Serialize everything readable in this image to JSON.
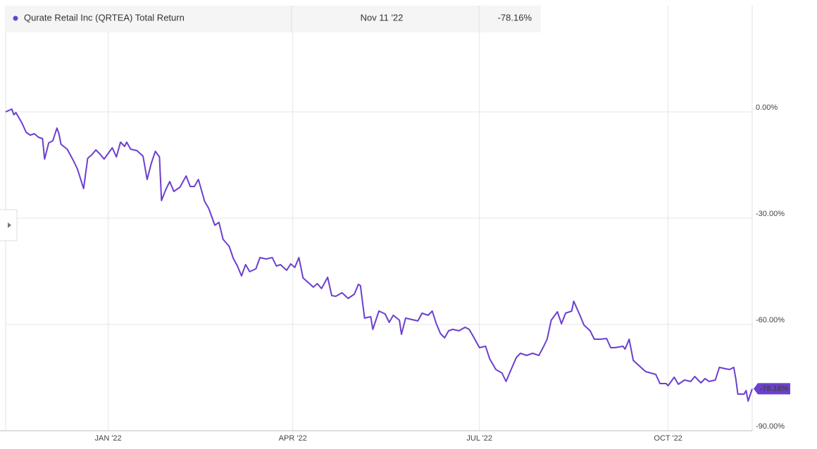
{
  "chart_data": {
    "type": "line",
    "header": {
      "date": "Nov 11 '22",
      "value": "-78.16%"
    },
    "x": [
      "2021-11-12",
      "2021-11-15",
      "2021-11-16",
      "2021-11-17",
      "2021-11-20",
      "2021-11-22",
      "2021-11-24",
      "2021-11-26",
      "2021-11-28",
      "2021-11-30",
      "2021-12-01",
      "2021-12-03",
      "2021-12-05",
      "2021-12-07",
      "2021-12-08",
      "2021-12-09",
      "2021-12-12",
      "2021-12-15",
      "2021-12-17",
      "2021-12-20",
      "2021-12-22",
      "2021-12-24",
      "2021-12-26",
      "2021-12-28",
      "2021-12-30",
      "2022-01-01",
      "2022-01-03",
      "2022-01-05",
      "2022-01-07",
      "2022-01-09",
      "2022-01-10",
      "2022-01-12",
      "2022-01-15",
      "2022-01-18",
      "2022-01-20",
      "2022-01-22",
      "2022-01-24",
      "2022-01-26",
      "2022-01-27",
      "2022-01-29",
      "2022-01-31",
      "2022-02-02",
      "2022-02-05",
      "2022-02-08",
      "2022-02-10",
      "2022-02-12",
      "2022-02-14",
      "2022-02-17",
      "2022-02-19",
      "2022-02-22",
      "2022-02-24",
      "2022-02-26",
      "2022-03-01",
      "2022-03-03",
      "2022-03-05",
      "2022-03-07",
      "2022-03-09",
      "2022-03-11",
      "2022-03-14",
      "2022-03-16",
      "2022-03-19",
      "2022-03-22",
      "2022-03-24",
      "2022-03-26",
      "2022-03-29",
      "2022-03-31",
      "2022-04-02",
      "2022-04-04",
      "2022-04-06",
      "2022-04-08",
      "2022-04-11",
      "2022-04-13",
      "2022-04-15",
      "2022-04-18",
      "2022-04-20",
      "2022-04-22",
      "2022-04-25",
      "2022-04-28",
      "2022-05-01",
      "2022-05-03",
      "2022-05-04",
      "2022-05-06",
      "2022-05-09",
      "2022-05-10",
      "2022-05-13",
      "2022-05-16",
      "2022-05-18",
      "2022-05-20",
      "2022-05-23",
      "2022-05-24",
      "2022-05-26",
      "2022-05-29",
      "2022-06-01",
      "2022-06-03",
      "2022-06-06",
      "2022-06-08",
      "2022-06-10",
      "2022-06-12",
      "2022-06-14",
      "2022-06-16",
      "2022-06-18",
      "2022-06-21",
      "2022-06-24",
      "2022-06-26",
      "2022-06-28",
      "2022-07-01",
      "2022-07-04",
      "2022-07-06",
      "2022-07-09",
      "2022-07-12",
      "2022-07-14",
      "2022-07-16",
      "2022-07-19",
      "2022-07-21",
      "2022-07-24",
      "2022-07-27",
      "2022-07-30",
      "2022-08-01",
      "2022-08-03",
      "2022-08-05",
      "2022-08-08",
      "2022-08-10",
      "2022-08-12",
      "2022-08-15",
      "2022-08-16",
      "2022-08-19",
      "2022-08-21",
      "2022-08-24",
      "2022-08-26",
      "2022-08-29",
      "2022-09-01",
      "2022-09-03",
      "2022-09-05",
      "2022-09-09",
      "2022-09-10",
      "2022-09-12",
      "2022-09-14",
      "2022-09-17",
      "2022-09-20",
      "2022-09-25",
      "2022-09-27",
      "2022-09-30",
      "2022-10-01",
      "2022-10-04",
      "2022-10-06",
      "2022-10-09",
      "2022-10-12",
      "2022-10-14",
      "2022-10-17",
      "2022-10-19",
      "2022-10-21",
      "2022-10-24",
      "2022-10-26",
      "2022-10-29",
      "2022-10-31",
      "2022-11-02",
      "2022-11-03",
      "2022-11-04",
      "2022-11-07",
      "2022-11-08",
      "2022-11-09",
      "2022-11-11"
    ],
    "series": [
      {
        "name": "Qurate Retail Inc (QRTEA) Total Return",
        "color": "#6c3fcf",
        "values": [
          0,
          0.79,
          -0.79,
          -0.2,
          -3.18,
          -5.76,
          -6.56,
          -6.16,
          -7.15,
          -7.55,
          -13.31,
          -8.74,
          -8.15,
          -4.57,
          -6.16,
          -9.14,
          -10.53,
          -13.71,
          -16.09,
          -21.66,
          -13.11,
          -12.12,
          -10.73,
          -11.92,
          -13.31,
          -11.72,
          -10.13,
          -12.72,
          -8.54,
          -9.74,
          -8.54,
          -10.53,
          -10.93,
          -12.52,
          -19.07,
          -14.5,
          -11.13,
          -12.72,
          -25.03,
          -22.05,
          -19.67,
          -22.45,
          -21.26,
          -18.08,
          -21.06,
          -21.06,
          -19.07,
          -25.23,
          -27.22,
          -31.99,
          -31.19,
          -35.96,
          -37.95,
          -41.33,
          -43.51,
          -46.29,
          -43.11,
          -45.1,
          -44.31,
          -41.13,
          -41.52,
          -41.13,
          -43.51,
          -43.11,
          -44.7,
          -42.91,
          -43.91,
          -41.13,
          -46.89,
          -47.88,
          -49.47,
          -48.48,
          -49.87,
          -46.69,
          -51.85,
          -52.05,
          -51.06,
          -52.65,
          -51.46,
          -48.68,
          -49.07,
          -58.21,
          -57.82,
          -61.39,
          -56.23,
          -57.02,
          -59.4,
          -57.42,
          -58.81,
          -62.78,
          -58.21,
          -58.61,
          -59.01,
          -56.82,
          -57.42,
          -56.23,
          -59.8,
          -62.58,
          -63.78,
          -61.79,
          -61.39,
          -61.79,
          -60.8,
          -61.39,
          -63.38,
          -66.56,
          -66.16,
          -69.74,
          -72.72,
          -73.71,
          -76.09,
          -73.31,
          -69.34,
          -68.15,
          -68.74,
          -68.15,
          -68.74,
          -66.56,
          -64.17,
          -58.81,
          -56.42,
          -59.8,
          -56.82,
          -56.23,
          -53.45,
          -57.42,
          -60.2,
          -61.79,
          -64.17,
          -64.17,
          -63.97,
          -66.56,
          -66.56,
          -66.16,
          -66.95,
          -64.17,
          -70.13,
          -71.72,
          -73.31,
          -74.11,
          -76.69,
          -76.69,
          -77.28,
          -74.9,
          -76.89,
          -75.7,
          -76.09,
          -74.7,
          -76.49,
          -75.3,
          -76.09,
          -75.7,
          -72.12,
          -72.52,
          -72.72,
          -72.12,
          -75.3,
          -79.67,
          -79.67,
          -78.68,
          -81.64,
          -78.16
        ]
      }
    ],
    "xlim": [
      "2021-11-12",
      "2022-11-11"
    ],
    "xticks": [
      {
        "value": "2022-01-01",
        "label": "JAN '22"
      },
      {
        "value": "2022-04-01",
        "label": "APR '22"
      },
      {
        "value": "2022-07-01",
        "label": "JUL '22"
      },
      {
        "value": "2022-10-01",
        "label": "OCT '22"
      }
    ],
    "ylim": [
      -90,
      30
    ],
    "yticks": [
      {
        "value": -90,
        "label": "-90.00%"
      },
      {
        "value": -60,
        "label": "-60.00%"
      },
      {
        "value": -30,
        "label": "-30.00%"
      },
      {
        "value": 0,
        "label": "0.00%"
      }
    ],
    "grid": true
  }
}
